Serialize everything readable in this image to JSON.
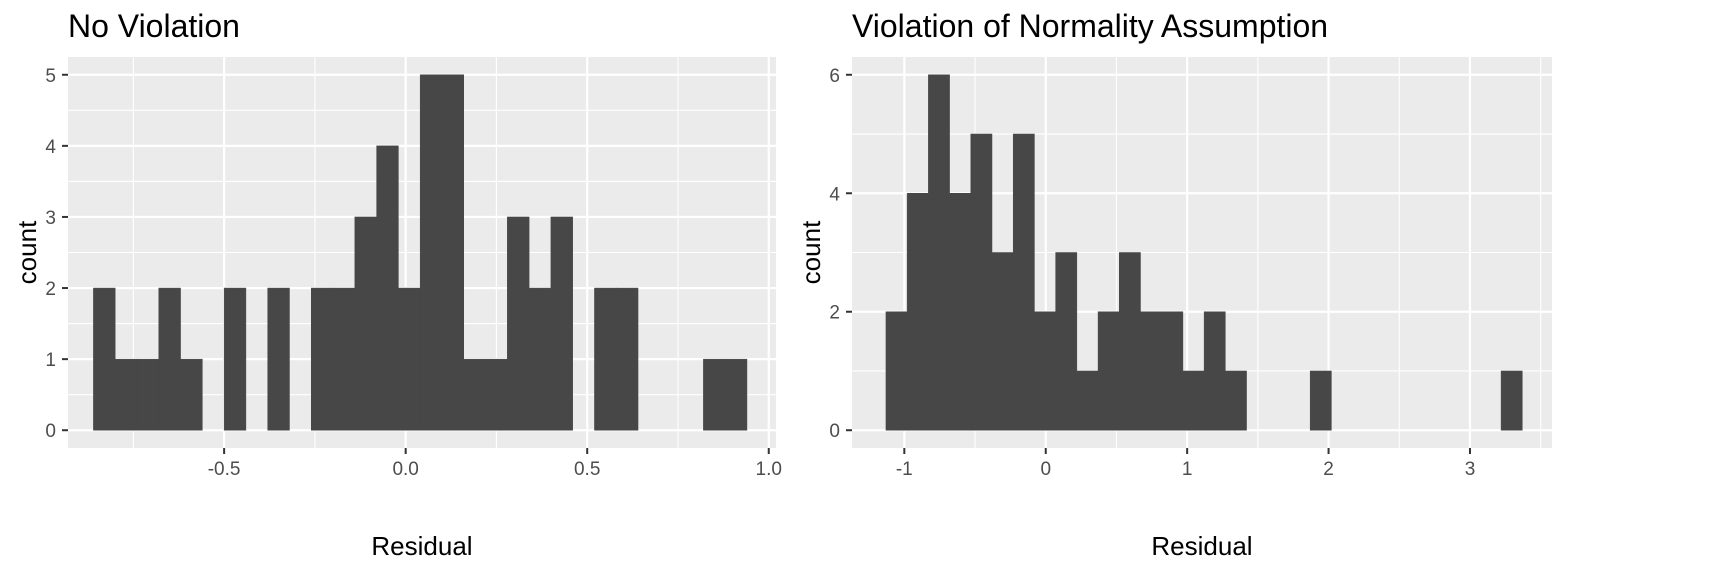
{
  "chart_data": [
    {
      "type": "bar",
      "title": "No Violation",
      "xlabel": "Residual",
      "ylabel": "count",
      "xlim": [
        -0.93,
        1.02
      ],
      "ylim": [
        -0.25,
        5.25
      ],
      "x_ticks": [
        -0.5,
        0.0,
        0.5,
        1.0
      ],
      "x_tick_labels": [
        "-0.5",
        "0.0",
        "0.5",
        "1.0"
      ],
      "y_ticks": [
        0,
        1,
        2,
        3,
        4,
        5
      ],
      "y_tick_labels": [
        "0",
        "1",
        "2",
        "3",
        "4",
        "5"
      ],
      "grid": true,
      "bar_color": "#474747",
      "bin_start": -0.86,
      "bin_width": 0.06,
      "values": [
        2,
        1,
        1,
        2,
        1,
        0,
        2,
        0,
        2,
        0,
        2,
        2,
        3,
        4,
        2,
        5,
        5,
        1,
        1,
        3,
        2,
        3,
        0,
        2,
        2,
        0,
        0,
        0,
        1,
        1
      ]
    },
    {
      "type": "bar",
      "title": "Violation of Normality Assumption",
      "xlabel": "Residual",
      "ylabel": "count",
      "xlim": [
        -1.37,
        3.58
      ],
      "ylim": [
        -0.3,
        6.3
      ],
      "x_ticks": [
        -1,
        0,
        1,
        2,
        3
      ],
      "x_tick_labels": [
        "-1",
        "0",
        "1",
        "2",
        "3"
      ],
      "y_ticks": [
        0,
        2,
        4,
        6
      ],
      "y_tick_labels": [
        "0",
        "2",
        "4",
        "6"
      ],
      "grid": true,
      "bar_color": "#474747",
      "bin_start": -1.13,
      "bin_width": 0.15,
      "values": [
        2,
        4,
        6,
        4,
        5,
        3,
        5,
        2,
        3,
        1,
        2,
        3,
        2,
        2,
        1,
        2,
        1,
        0,
        0,
        0,
        1,
        0,
        0,
        0,
        0,
        0,
        0,
        0,
        0,
        1
      ]
    }
  ]
}
